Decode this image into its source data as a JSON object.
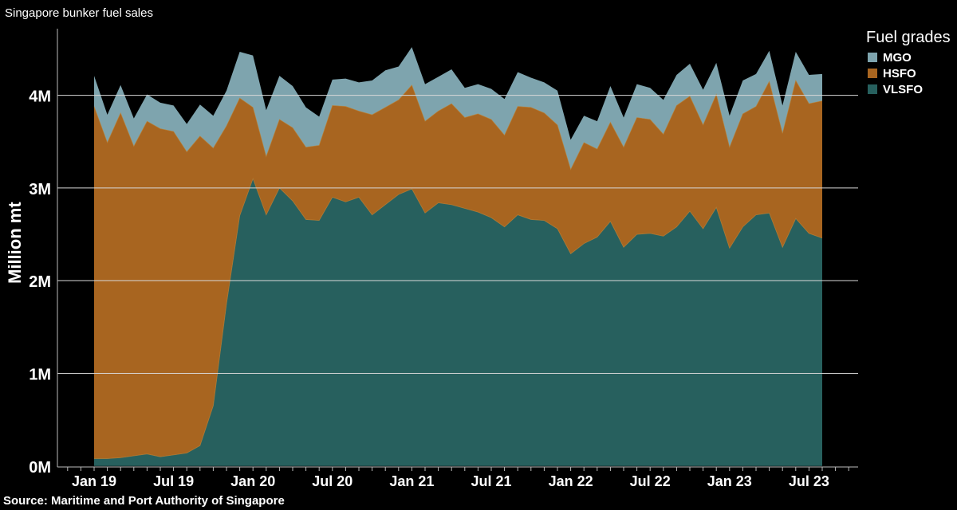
{
  "chart_data": {
    "type": "area",
    "stacked": true,
    "title": "Singapore bunker fuel sales",
    "source": "Source: Maritime and Port Authority of Singapore",
    "ylabel": "Million mt",
    "legend_title": "Fuel grades",
    "legend_position": "top-right",
    "ylim": [
      0,
      4.8
    ],
    "yticks": [
      {
        "value": 0,
        "label": "0M"
      },
      {
        "value": 1,
        "label": "1M"
      },
      {
        "value": 2,
        "label": "2M"
      },
      {
        "value": 3,
        "label": "3M"
      },
      {
        "value": 4,
        "label": "4M"
      }
    ],
    "xticks": [
      {
        "index": 0,
        "label": "Jan 19"
      },
      {
        "index": 6,
        "label": "Jul 19"
      },
      {
        "index": 12,
        "label": "Jan 20"
      },
      {
        "index": 18,
        "label": "Jul 20"
      },
      {
        "index": 24,
        "label": "Jan 21"
      },
      {
        "index": 30,
        "label": "Jul 21"
      },
      {
        "index": 36,
        "label": "Jan 22"
      },
      {
        "index": 42,
        "label": "Jul 22"
      },
      {
        "index": 48,
        "label": "Jan 23"
      },
      {
        "index": 54,
        "label": "Jul 23"
      }
    ],
    "x_start": "2019-01",
    "x_end": "2023-09",
    "grid": "horizontal",
    "colors": {
      "background": "#000000",
      "grid": "#d8d8d8",
      "axis": "#bbbbbb"
    },
    "series": [
      {
        "name": "VLSFO",
        "color": "#27605e",
        "values": [
          0.08,
          0.08,
          0.09,
          0.11,
          0.13,
          0.1,
          0.12,
          0.14,
          0.22,
          0.65,
          1.75,
          2.7,
          3.1,
          2.71,
          3.0,
          2.86,
          2.66,
          2.65,
          2.9,
          2.85,
          2.9,
          2.71,
          2.82,
          2.93,
          2.99,
          2.73,
          2.84,
          2.82,
          2.78,
          2.74,
          2.68,
          2.58,
          2.71,
          2.66,
          2.65,
          2.56,
          2.29,
          2.4,
          2.47,
          2.64,
          2.36,
          2.5,
          2.51,
          2.48,
          2.58,
          2.75,
          2.56,
          2.79,
          2.35,
          2.58,
          2.71,
          2.73,
          2.36,
          2.67,
          2.51,
          2.46
        ]
      },
      {
        "name": "HSFO",
        "color": "#a86520",
        "values": [
          3.8,
          3.41,
          3.72,
          3.34,
          3.59,
          3.54,
          3.49,
          3.25,
          3.34,
          2.78,
          1.92,
          1.27,
          0.77,
          0.63,
          0.74,
          0.79,
          0.78,
          0.81,
          0.99,
          1.03,
          0.93,
          1.08,
          1.05,
          1.02,
          1.12,
          0.99,
          0.99,
          1.09,
          0.98,
          1.06,
          1.06,
          0.99,
          1.17,
          1.21,
          1.16,
          1.12,
          0.91,
          1.09,
          0.95,
          1.07,
          1.08,
          1.26,
          1.23,
          1.1,
          1.31,
          1.24,
          1.12,
          1.22,
          1.09,
          1.22,
          1.17,
          1.42,
          1.23,
          1.49,
          1.4,
          1.48
        ]
      },
      {
        "name": "MGO",
        "color": "#7ea4ae",
        "values": [
          0.33,
          0.3,
          0.3,
          0.3,
          0.29,
          0.28,
          0.28,
          0.3,
          0.34,
          0.35,
          0.38,
          0.5,
          0.56,
          0.5,
          0.47,
          0.45,
          0.43,
          0.31,
          0.28,
          0.3,
          0.31,
          0.37,
          0.4,
          0.36,
          0.41,
          0.4,
          0.37,
          0.37,
          0.32,
          0.32,
          0.33,
          0.39,
          0.37,
          0.32,
          0.33,
          0.37,
          0.32,
          0.29,
          0.3,
          0.39,
          0.32,
          0.36,
          0.34,
          0.37,
          0.33,
          0.35,
          0.38,
          0.34,
          0.34,
          0.36,
          0.35,
          0.33,
          0.3,
          0.31,
          0.31,
          0.29
        ]
      }
    ]
  }
}
